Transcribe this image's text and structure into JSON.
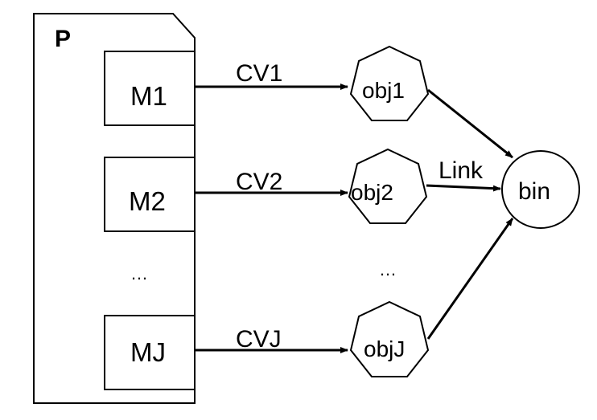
{
  "container": {
    "label": "P"
  },
  "modules": [
    {
      "id": "m1",
      "label": "M1"
    },
    {
      "id": "m2",
      "label": "M2"
    },
    {
      "id": "mj",
      "label": "MJ"
    }
  ],
  "module_ellipsis": "…",
  "edges": [
    {
      "id": "cv1",
      "label": "CV1"
    },
    {
      "id": "cv2",
      "label": "CV2"
    },
    {
      "id": "cvj",
      "label": "CVJ"
    }
  ],
  "objects": [
    {
      "id": "obj1",
      "label": "obj1"
    },
    {
      "id": "obj2",
      "label": "obj2"
    },
    {
      "id": "objj",
      "label": "objJ"
    }
  ],
  "object_ellipsis": "…",
  "link_label": "Link",
  "bin": {
    "label": "bin"
  }
}
